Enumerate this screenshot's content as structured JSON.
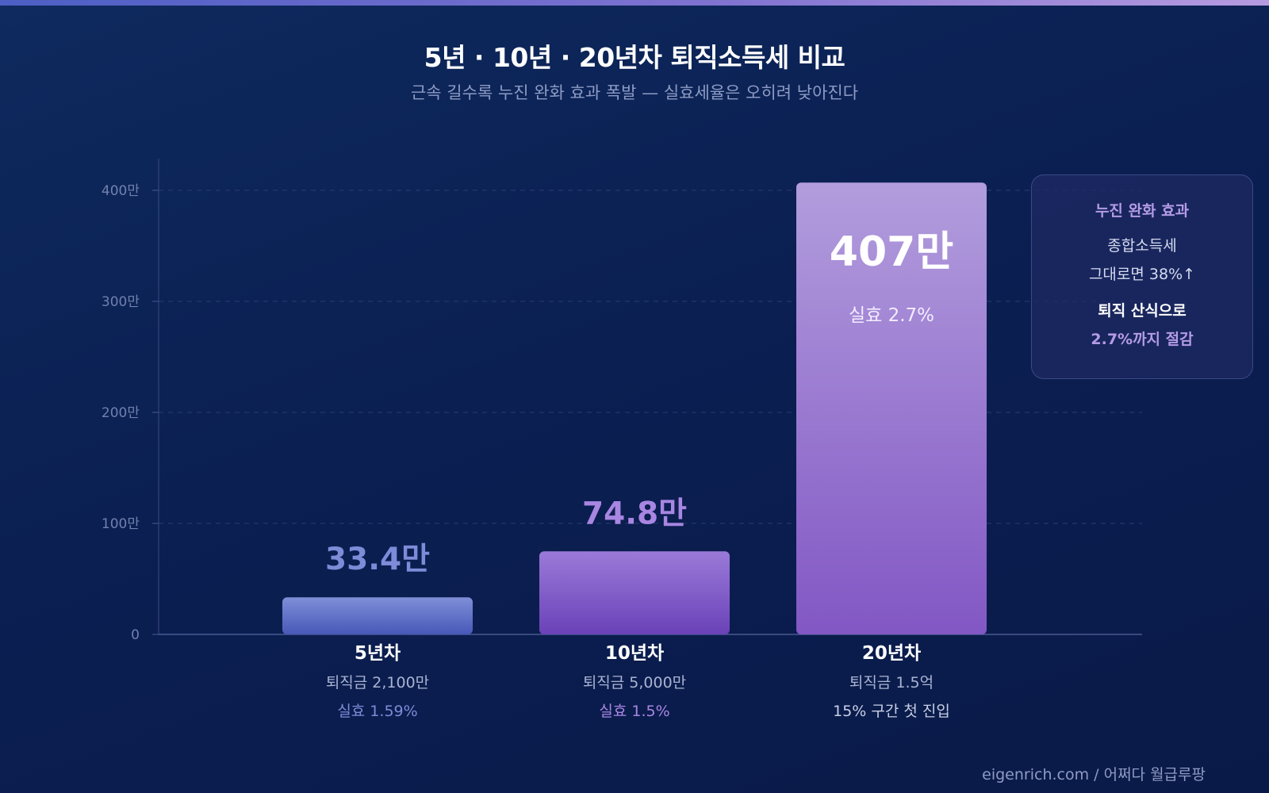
{
  "chart_data": {
    "type": "bar",
    "title": "5년 · 10년 · 20년차 퇴직소득세 비교",
    "subtitle": "근속 길수록 누진 완화 효과 폭발 — 실효세율은 오히려 낮아진다",
    "ylim": [
      0,
      400
    ],
    "yticks": [
      {
        "value": 0,
        "label": "0"
      },
      {
        "value": 100,
        "label": "100만"
      },
      {
        "value": 200,
        "label": "200만"
      },
      {
        "value": 300,
        "label": "300만"
      },
      {
        "value": 400,
        "label": "400만"
      }
    ],
    "grid": true,
    "categories": [
      "5년차",
      "10년차",
      "20년차"
    ],
    "values": [
      33.4,
      74.8,
      407
    ],
    "value_labels": [
      "33.4만",
      "74.8만",
      "407만"
    ],
    "bars": [
      {
        "category": "5년차",
        "value": 33.4,
        "value_label": "33.4만",
        "note1": "퇴직금 2,100만",
        "note2": "실효 1.59%",
        "inner_note": "",
        "label_color": "#7d8bd8",
        "note2_color": "#7d8bd8",
        "top_color": "#7f8fd8",
        "bottom_color": "#4758b8"
      },
      {
        "category": "10년차",
        "value": 74.8,
        "value_label": "74.8만",
        "note1": "퇴직금 5,000만",
        "note2": "실효 1.5%",
        "inner_note": "",
        "label_color": "#a886e2",
        "note2_color": "#a886e2",
        "top_color": "#9a7ad8",
        "bottom_color": "#6a42b8"
      },
      {
        "category": "20년차",
        "value": 407,
        "value_label": "407만",
        "note1": "퇴직금 1.5억",
        "note2": "15% 구간 첫 진입",
        "inner_note": "실효 2.7%",
        "label_color": "#ffffff",
        "note2_color": "#c8cfe6",
        "top_color": "#b29ddd",
        "bottom_color": "#8257c4"
      }
    ]
  },
  "callout": {
    "title": "누진 완화 효과",
    "line1": "종합소득세",
    "line2": "그대로면 38%↑",
    "line3": "퇴직 산식으로",
    "line4": "2.7%까지 절감"
  },
  "footer": "eigenrich.com / 어쩌다 월급루팡",
  "colors": {
    "background": "#0b1f52",
    "accent": "#b49be6",
    "axis_text": "#7280ad",
    "grid": "#2a3c72"
  }
}
